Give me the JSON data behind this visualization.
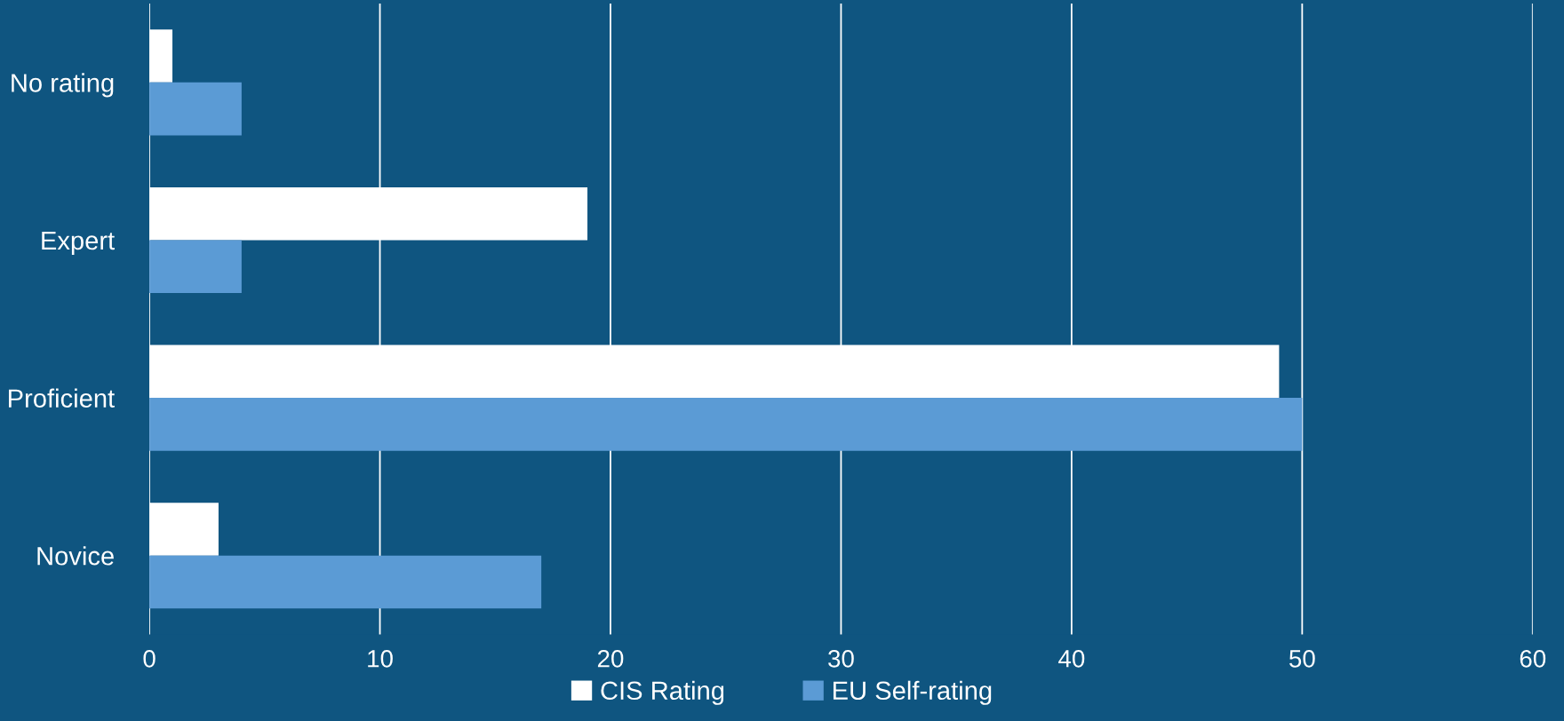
{
  "chart_data": {
    "type": "bar",
    "orientation": "horizontal",
    "categories": [
      "No rating",
      "Expert",
      "Proficient",
      "Novice"
    ],
    "series": [
      {
        "name": "CIS Rating",
        "color": "#ffffff",
        "values": [
          1,
          19,
          49,
          3
        ]
      },
      {
        "name": "EU Self-rating",
        "color": "#5b9bd5",
        "values": [
          4,
          4,
          50,
          17
        ]
      }
    ],
    "xlim": [
      0,
      60
    ],
    "xticks": [
      0,
      10,
      20,
      30,
      40,
      50,
      60
    ],
    "grid": "x",
    "legend": "bottom"
  }
}
